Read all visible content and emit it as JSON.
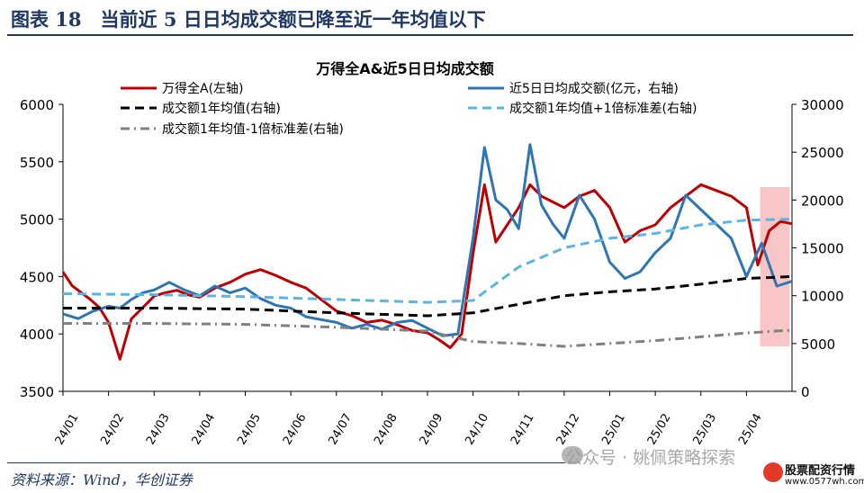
{
  "header": {
    "title": "图表 18　当前近 5 日日均成交额已降至近一年均值以下"
  },
  "footer": {
    "source": "资料来源：Wind，华创证券",
    "watermark": "公众号 · 姚佩策略探索",
    "watermark_logo_text": "股票配资行情",
    "watermark_logo_url": "www.0577wh.com"
  },
  "colors": {
    "wind_a": "#c00000",
    "avg5": "#2e75b6",
    "mean1y": "#000000",
    "plus1sd": "#5ab4e5",
    "minus1sd": "#808080",
    "highlight": "#f4a7a7",
    "header": "#1f3864"
  },
  "chart_data": {
    "type": "line",
    "title": "万得全A&近5日日均成交额",
    "x_tick_labels": [
      "24/01",
      "24/02",
      "24/03",
      "24/04",
      "24/05",
      "24/06",
      "24/07",
      "24/08",
      "24/09",
      "24/10",
      "24/11",
      "24/12",
      "25/01",
      "25/02",
      "25/03",
      "25/04"
    ],
    "ylim_left": [
      3500,
      6000
    ],
    "yticks_left": [
      3500,
      4000,
      4500,
      5000,
      5500,
      6000
    ],
    "ylim_right": [
      0,
      30000
    ],
    "yticks_right": [
      0,
      5000,
      10000,
      15000,
      20000,
      25000,
      30000
    ],
    "legend_position": "top",
    "highlight_range": [
      "25/04",
      "25/05"
    ],
    "series": [
      {
        "name": "万得全A(左轴)",
        "axis": "left",
        "style": "solid",
        "points": [
          [
            "24/01",
            4540
          ],
          [
            "24/01",
            4420
          ],
          [
            "24/01",
            4360
          ],
          [
            "24/01",
            4300
          ],
          [
            "24/01",
            4230
          ],
          [
            "24/02",
            4100
          ],
          [
            "24/02",
            3780
          ],
          [
            "24/02",
            4130
          ],
          [
            "24/02",
            4230
          ],
          [
            "24/03",
            4330
          ],
          [
            "24/03",
            4360
          ],
          [
            "24/03",
            4380
          ],
          [
            "24/03",
            4340
          ],
          [
            "24/04",
            4320
          ],
          [
            "24/04",
            4400
          ],
          [
            "24/04",
            4450
          ],
          [
            "24/05",
            4520
          ],
          [
            "24/05",
            4560
          ],
          [
            "24/05",
            4510
          ],
          [
            "24/06",
            4450
          ],
          [
            "24/06",
            4400
          ],
          [
            "24/06",
            4300
          ],
          [
            "24/07",
            4200
          ],
          [
            "24/07",
            4160
          ],
          [
            "24/07",
            4100
          ],
          [
            "24/08",
            4120
          ],
          [
            "24/08",
            4080
          ],
          [
            "24/08",
            4030
          ],
          [
            "24/09",
            4010
          ],
          [
            "24/09",
            3950
          ],
          [
            "24/09",
            3880
          ],
          [
            "24/09",
            4000
          ],
          [
            "24/10",
            4700
          ],
          [
            "24/10",
            5300
          ],
          [
            "24/10",
            4800
          ],
          [
            "24/10",
            4950
          ],
          [
            "24/11",
            5100
          ],
          [
            "24/11",
            5300
          ],
          [
            "24/11",
            5200
          ],
          [
            "24/11",
            5150
          ],
          [
            "24/12",
            5100
          ],
          [
            "24/12",
            5200
          ],
          [
            "24/12",
            5250
          ],
          [
            "25/01",
            5100
          ],
          [
            "25/01",
            4800
          ],
          [
            "25/01",
            4900
          ],
          [
            "25/02",
            4950
          ],
          [
            "25/02",
            5100
          ],
          [
            "25/02",
            5200
          ],
          [
            "25/03",
            5300
          ],
          [
            "25/03",
            5250
          ],
          [
            "25/03",
            5200
          ],
          [
            "25/04",
            5100
          ],
          [
            "25/04",
            4600
          ],
          [
            "25/04",
            4900
          ],
          [
            "25/04",
            4980
          ],
          [
            "25/05",
            4960
          ]
        ]
      },
      {
        "name": "近5日日均成交额(亿元，右轴)",
        "axis": "right",
        "style": "solid",
        "points": [
          [
            "24/01",
            8100
          ],
          [
            "24/01",
            7600
          ],
          [
            "24/01",
            8400
          ],
          [
            "24/02",
            8900
          ],
          [
            "24/02",
            8700
          ],
          [
            "24/02",
            9600
          ],
          [
            "24/02",
            10300
          ],
          [
            "24/03",
            10600
          ],
          [
            "24/03",
            11400
          ],
          [
            "24/03",
            10600
          ],
          [
            "24/04",
            10000
          ],
          [
            "24/04",
            11000
          ],
          [
            "24/04",
            10300
          ],
          [
            "24/05",
            10800
          ],
          [
            "24/05",
            9700
          ],
          [
            "24/05",
            9000
          ],
          [
            "24/06",
            8700
          ],
          [
            "24/06",
            7800
          ],
          [
            "24/06",
            7500
          ],
          [
            "24/07",
            7200
          ],
          [
            "24/07",
            6600
          ],
          [
            "24/07",
            7000
          ],
          [
            "24/08",
            6500
          ],
          [
            "24/08",
            7200
          ],
          [
            "24/08",
            7400
          ],
          [
            "24/09",
            6600
          ],
          [
            "24/09",
            5800
          ],
          [
            "24/09",
            6000
          ],
          [
            "24/10",
            16000
          ],
          [
            "24/10",
            25500
          ],
          [
            "24/10",
            20000
          ],
          [
            "24/10",
            19000
          ],
          [
            "24/11",
            17000
          ],
          [
            "24/11",
            25800
          ],
          [
            "24/11",
            19500
          ],
          [
            "24/11",
            17500
          ],
          [
            "24/12",
            16000
          ],
          [
            "24/12",
            20500
          ],
          [
            "24/12",
            18000
          ],
          [
            "25/01",
            13500
          ],
          [
            "25/01",
            11800
          ],
          [
            "25/01",
            12500
          ],
          [
            "25/02",
            14500
          ],
          [
            "25/02",
            16000
          ],
          [
            "25/02",
            20500
          ],
          [
            "25/03",
            19000
          ],
          [
            "25/03",
            17500
          ],
          [
            "25/03",
            16000
          ],
          [
            "25/04",
            12000
          ],
          [
            "25/04",
            15500
          ],
          [
            "25/04",
            11000
          ],
          [
            "25/05",
            11500
          ]
        ]
      },
      {
        "name": "成交额1年均值(右轴)",
        "axis": "right",
        "style": "dashed",
        "points": [
          [
            "24/01",
            8700
          ],
          [
            "24/03",
            8700
          ],
          [
            "24/05",
            8600
          ],
          [
            "24/07",
            8200
          ],
          [
            "24/09",
            7900
          ],
          [
            "24/10",
            8200
          ],
          [
            "24/11",
            9100
          ],
          [
            "24/12",
            10000
          ],
          [
            "25/01",
            10400
          ],
          [
            "25/02",
            10700
          ],
          [
            "25/03",
            11200
          ],
          [
            "25/04",
            11800
          ],
          [
            "25/05",
            12000
          ]
        ]
      },
      {
        "name": "成交额1年均值+1倍标准差(右轴)",
        "axis": "right",
        "style": "dashed",
        "points": [
          [
            "24/01",
            10200
          ],
          [
            "24/03",
            10100
          ],
          [
            "24/05",
            9900
          ],
          [
            "24/07",
            9600
          ],
          [
            "24/09",
            9300
          ],
          [
            "24/10",
            9500
          ],
          [
            "24/11",
            13000
          ],
          [
            "24/12",
            15000
          ],
          [
            "25/01",
            16000
          ],
          [
            "25/02",
            16500
          ],
          [
            "25/03",
            17400
          ],
          [
            "25/04",
            17900
          ],
          [
            "25/05",
            18000
          ]
        ]
      },
      {
        "name": "成交额1年均值-1倍标准差(右轴)",
        "axis": "right",
        "style": "dash-dot",
        "points": [
          [
            "24/01",
            7100
          ],
          [
            "24/03",
            7100
          ],
          [
            "24/05",
            7000
          ],
          [
            "24/07",
            6700
          ],
          [
            "24/09",
            6300
          ],
          [
            "24/10",
            5200
          ],
          [
            "24/11",
            5000
          ],
          [
            "24/12",
            4700
          ],
          [
            "25/01",
            5000
          ],
          [
            "25/02",
            5300
          ],
          [
            "25/03",
            5700
          ],
          [
            "25/04",
            6100
          ],
          [
            "25/05",
            6400
          ]
        ]
      }
    ]
  }
}
